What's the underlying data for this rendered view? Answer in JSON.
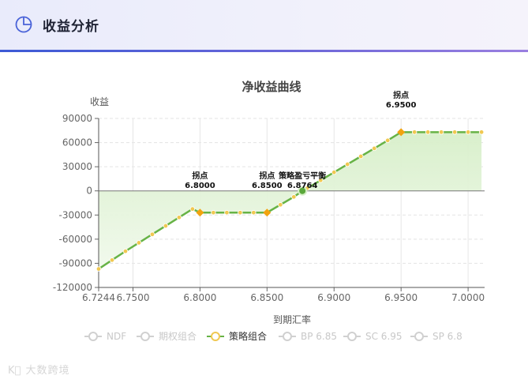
{
  "header": {
    "title": "收益分析",
    "icon": "pie-chart-icon"
  },
  "watermark": {
    "text": "大数跨境",
    "icon": "ks-logo-icon"
  },
  "colors": {
    "accent": "#3c5ad6",
    "strategy_line": "#67b346",
    "strategy_point": "#f0c851",
    "pivot": "#f2a30f",
    "breakeven": "#5aa83b",
    "area": "#e3f3da"
  },
  "chart_data": {
    "type": "line",
    "title": "净收益曲线",
    "xlabel": "到期汇率",
    "ylabel": "收益",
    "xlim": [
      6.7244,
      7.0123
    ],
    "ylim": [
      -120000,
      90000
    ],
    "x_ticks": [
      "6.7244",
      "6.7500",
      "6.8000",
      "6.8500",
      "6.9000",
      "6.9500",
      "7.0000"
    ],
    "y_ticks": [
      "90000",
      "60000",
      "30000",
      "0",
      "-30000",
      "-60000",
      "-90000",
      "-120000"
    ],
    "grid": true,
    "legend_position": "bottom",
    "legend": [
      {
        "name": "NDF",
        "active": false
      },
      {
        "name": "期权组合",
        "active": false
      },
      {
        "name": "策略组合",
        "active": true
      },
      {
        "name": "BP 6.85",
        "active": false
      },
      {
        "name": "SC 6.95",
        "active": false
      },
      {
        "name": "SP 6.8",
        "active": false
      }
    ],
    "series": [
      {
        "name": "策略组合",
        "x": [
          6.7244,
          6.7344,
          6.7444,
          6.7544,
          6.7644,
          6.7744,
          6.7844,
          6.7944,
          6.8,
          6.81,
          6.82,
          6.83,
          6.84,
          6.85,
          6.86,
          6.87,
          6.8764,
          6.88,
          6.89,
          6.9,
          6.91,
          6.92,
          6.93,
          6.94,
          6.95,
          6.96,
          6.97,
          6.98,
          6.99,
          7.0,
          7.01
        ],
        "y": [
          -97000,
          -86000,
          -75000,
          -64500,
          -54000,
          -43500,
          -33000,
          -22500,
          -27000,
          -27000,
          -27000,
          -27000,
          -27000,
          -27000,
          -17200,
          -7500,
          0,
          3300,
          13200,
          23100,
          33000,
          42900,
          52800,
          62700,
          73000,
          73000,
          73000,
          73000,
          73000,
          73000,
          73000
        ]
      }
    ],
    "annotations": [
      {
        "label": "拐点",
        "value": "6.8000",
        "x": 6.8,
        "y": -27000
      },
      {
        "label": "拐点",
        "value": "6.8500",
        "x": 6.85,
        "y": -27000
      },
      {
        "label": "策略盈亏平衡",
        "value": "6.8764",
        "x": 6.8764,
        "y": 0
      },
      {
        "label": "拐点",
        "value": "6.9500",
        "x": 6.95,
        "y": 73000
      }
    ]
  }
}
